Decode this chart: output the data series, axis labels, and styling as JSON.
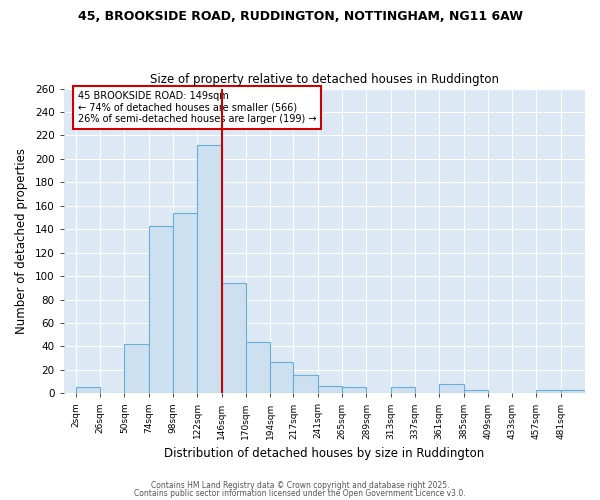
{
  "title1": "45, BROOKSIDE ROAD, RUDDINGTON, NOTTINGHAM, NG11 6AW",
  "title2": "Size of property relative to detached houses in Ruddington",
  "xlabel": "Distribution of detached houses by size in Ruddington",
  "ylabel": "Number of detached properties",
  "bin_edges": [
    2,
    26,
    50,
    74,
    98,
    122,
    146,
    170,
    194,
    217,
    241,
    265,
    289,
    313,
    337,
    361,
    385,
    409,
    433,
    457,
    481,
    505
  ],
  "bar_labels": [
    "2sqm",
    "26sqm",
    "50sqm",
    "74sqm",
    "98sqm",
    "122sqm",
    "146sqm",
    "170sqm",
    "194sqm",
    "217sqm",
    "241sqm",
    "265sqm",
    "289sqm",
    "313sqm",
    "337sqm",
    "361sqm",
    "385sqm",
    "409sqm",
    "433sqm",
    "457sqm",
    "481sqm"
  ],
  "bar_values": [
    5,
    0,
    42,
    143,
    154,
    212,
    94,
    44,
    27,
    16,
    6,
    5,
    0,
    5,
    0,
    8,
    3,
    0,
    0,
    3,
    3
  ],
  "bar_fill_color": "#cce0f0",
  "bar_edge_color": "#6aaed6",
  "red_line_x": 146,
  "red_line_color": "#cc0000",
  "annotation_text": "45 BROOKSIDE ROAD: 149sqm\n← 74% of detached houses are smaller (566)\n26% of semi-detached houses are larger (199) →",
  "annotation_box_color": "#ffffff",
  "annotation_box_edge": "#cc0000",
  "ylim": [
    0,
    260
  ],
  "yticks": [
    0,
    20,
    40,
    60,
    80,
    100,
    120,
    140,
    160,
    180,
    200,
    220,
    240,
    260
  ],
  "plot_bg_color": "#dce9f5",
  "fig_bg_color": "#ffffff",
  "grid_color": "#ffffff",
  "footer1": "Contains HM Land Registry data © Crown copyright and database right 2025.",
  "footer2": "Contains public sector information licensed under the Open Government Licence v3.0."
}
